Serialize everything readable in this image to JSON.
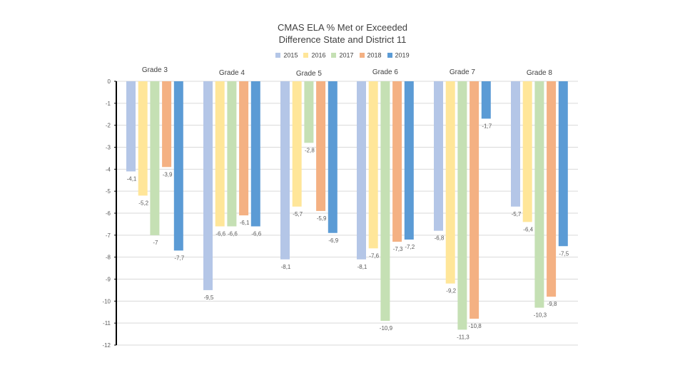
{
  "chart_data": {
    "type": "bar",
    "title": "CMAS ELA % Met or Exceeded",
    "subtitle": "Difference State and District 11",
    "categories": [
      "Grade 3",
      "Grade 4",
      "Grade 5",
      "Grade 6",
      "Grade 7",
      "Grade 8"
    ],
    "series": [
      {
        "name": "2015",
        "color": "#b4c6e7",
        "values": [
          -4.1,
          -9.5,
          -8.1,
          -8.1,
          -6.8,
          -5.7
        ]
      },
      {
        "name": "2016",
        "color": "#ffe699",
        "values": [
          -5.2,
          -6.6,
          -5.7,
          -7.6,
          -9.2,
          -6.4
        ]
      },
      {
        "name": "2017",
        "color": "#c5e0b4",
        "values": [
          -7,
          -6.6,
          -2.8,
          -10.9,
          -11.3,
          -10.3
        ]
      },
      {
        "name": "2018",
        "color": "#f4b183",
        "values": [
          -3.9,
          -6.1,
          -5.9,
          -7.3,
          -10.8,
          -9.8
        ]
      },
      {
        "name": "2019",
        "color": "#5b9bd5",
        "values": [
          -7.7,
          -6.6,
          -6.9,
          -7.2,
          -1.7,
          -7.5
        ]
      }
    ],
    "value_labels": [
      [
        "-4,1",
        "-9,5",
        "-8,1",
        "-8,1",
        "-6,8",
        "-5,7"
      ],
      [
        "-5,2",
        "-6,6",
        "-5,7",
        "-7,6",
        "-9,2",
        "-6,4"
      ],
      [
        "-7",
        "-6,6",
        "-2,8",
        "-10,9",
        "-11,3",
        "-10,3"
      ],
      [
        "-3,9",
        "-6,1",
        "-5,9",
        "-7,3",
        "-10,8",
        "-9,8"
      ],
      [
        "-7,7",
        "-6,6",
        "-6,9",
        "-7,2",
        "-1,7",
        "-7,5"
      ]
    ],
    "y_ticks": [
      "0",
      "-1",
      "-2",
      "-3",
      "-4",
      "-5",
      "-6",
      "-7",
      "-8",
      "-9",
      "-10",
      "-11",
      "-12"
    ],
    "ylim": [
      -12,
      0
    ],
    "xlabel": "",
    "ylabel": "",
    "grid": true,
    "legend": "top-center"
  }
}
